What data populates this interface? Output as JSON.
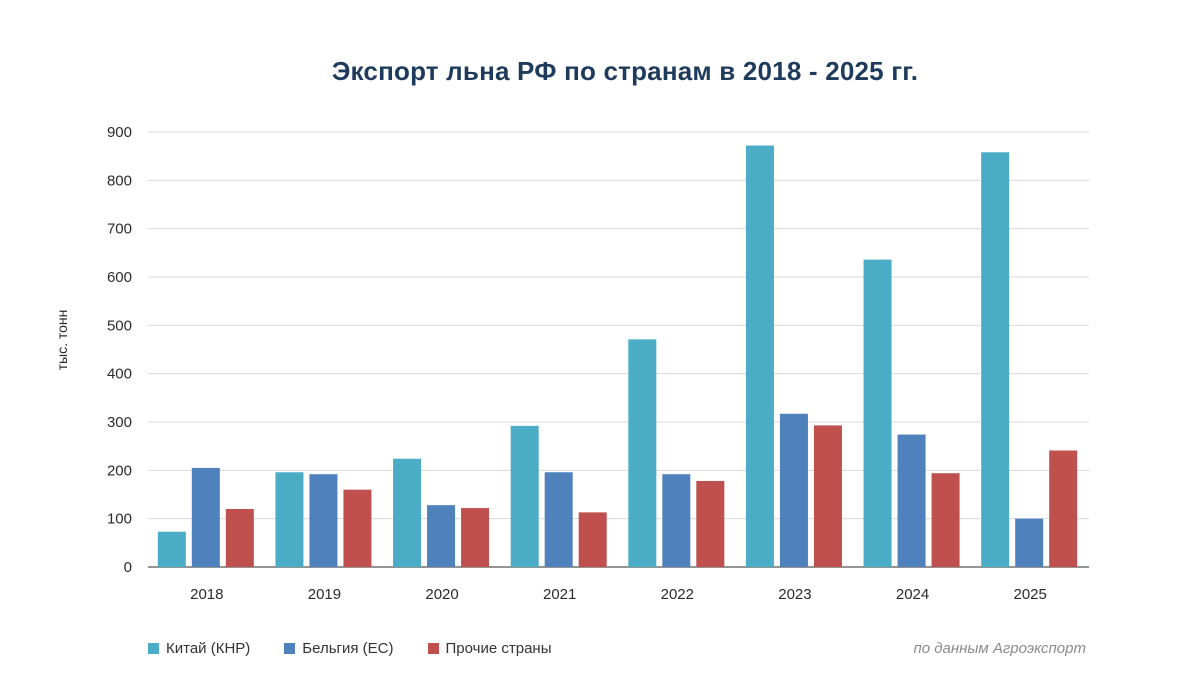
{
  "chart_data": {
    "type": "bar",
    "title": "Экспорт льна РФ по странам в 2018 - 2025 гг.",
    "ylabel": "тыс. тонн",
    "xlabel": "",
    "ylim": [
      0,
      900
    ],
    "yticks": [
      0,
      100,
      200,
      300,
      400,
      500,
      600,
      700,
      800,
      900
    ],
    "grid": true,
    "legend_position": "bottom-left",
    "categories": [
      "2018",
      "2019",
      "2020",
      "2021",
      "2022",
      "2023",
      "2024",
      "2025"
    ],
    "series": [
      {
        "name": "Китай (КНР)",
        "color": "#4bacc6",
        "values": [
          73,
          196,
          224,
          292,
          471,
          872,
          636,
          858
        ]
      },
      {
        "name": "Бельгия (ЕС)",
        "color": "#4f81bd",
        "values": [
          205,
          192,
          128,
          196,
          192,
          317,
          274,
          100
        ]
      },
      {
        "name": "Прочие страны",
        "color": "#c0504d",
        "values": [
          120,
          160,
          122,
          113,
          178,
          293,
          194,
          241
        ]
      }
    ]
  },
  "source_note": "по данным Агроэкспорт"
}
